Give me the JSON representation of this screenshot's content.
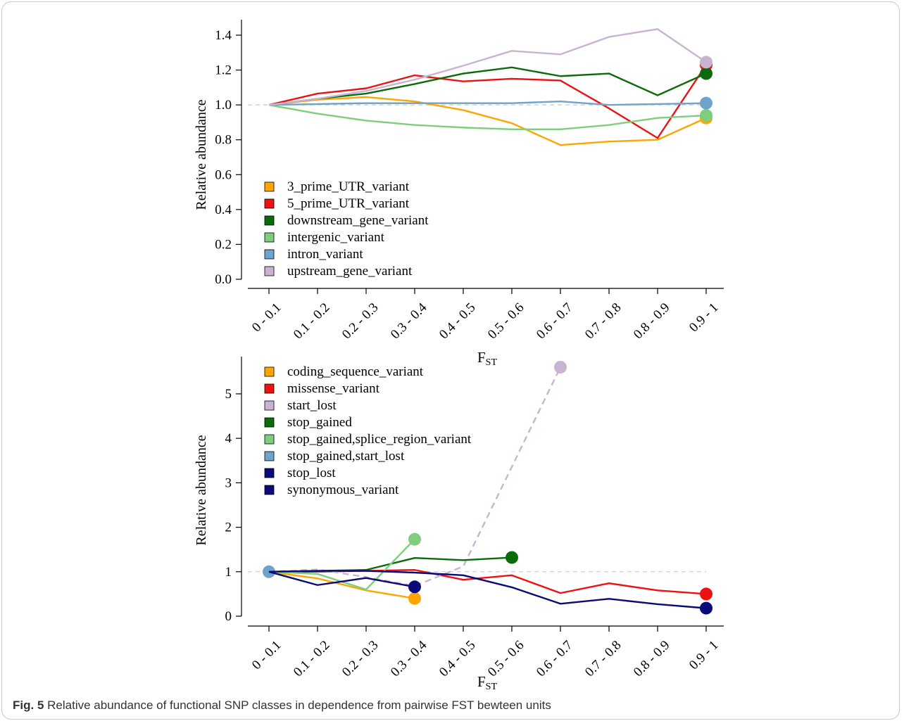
{
  "caption": {
    "label": "Fig. 5",
    "text": "Relative abundance of functional SNP classes in dependence from pairwise FST bewteen units"
  },
  "chart_data": [
    {
      "type": "line",
      "title": "",
      "xlabel": "F",
      "xlabel_sub": "ST",
      "ylabel": "Relative abundance",
      "ylim": [
        0,
        1.4
      ],
      "yticks": [
        "0.0",
        "0.2",
        "0.4",
        "0.6",
        "0.8",
        "1.0",
        "1.2",
        "1.4"
      ],
      "reference_line": 1.0,
      "legend_position": "bottom-left",
      "categories": [
        "0 - 0.1",
        "0.1 - 0.2",
        "0.2 - 0.3",
        "0.3 - 0.4",
        "0.4 - 0.5",
        "0.5 - 0.6",
        "0.6 - 0.7",
        "0.7 - 0.8",
        "0.8 - 0.9",
        "0.9 - 1"
      ],
      "series": [
        {
          "name": "3_prime_UTR_variant",
          "color": "#FFA500",
          "values": [
            1.0,
            1.03,
            1.045,
            1.02,
            0.97,
            0.895,
            0.77,
            0.79,
            0.8,
            0.925
          ]
        },
        {
          "name": "5_prime_UTR_variant",
          "color": "#EE1111",
          "values": [
            1.0,
            1.065,
            1.095,
            1.17,
            1.135,
            1.15,
            1.14,
            0.98,
            0.81,
            1.23
          ]
        },
        {
          "name": "downstream_gene_variant",
          "color": "#0B6B0B",
          "values": [
            1.0,
            1.035,
            1.065,
            1.12,
            1.18,
            1.215,
            1.165,
            1.18,
            1.055,
            1.18
          ]
        },
        {
          "name": "intergenic_variant",
          "color": "#7ECE7E",
          "values": [
            1.0,
            0.95,
            0.91,
            0.885,
            0.87,
            0.86,
            0.86,
            0.885,
            0.925,
            0.94
          ]
        },
        {
          "name": "intron_variant",
          "color": "#6FA3CB",
          "values": [
            1.0,
            1.005,
            1.01,
            1.01,
            1.01,
            1.01,
            1.02,
            1.0,
            1.005,
            1.01
          ]
        },
        {
          "name": "upstream_gene_variant",
          "color": "#C8B4D0",
          "values": [
            1.0,
            1.035,
            1.08,
            1.145,
            1.225,
            1.31,
            1.29,
            1.39,
            1.435,
            1.245
          ]
        }
      ]
    },
    {
      "type": "line",
      "title": "",
      "xlabel": "F",
      "xlabel_sub": "ST",
      "ylabel": "Relative abundance",
      "ylim": [
        0,
        5.6
      ],
      "yticks": [
        "0",
        "1",
        "2",
        "3",
        "4",
        "5"
      ],
      "reference_line": 1.0,
      "legend_position": "top-left",
      "categories": [
        "0 - 0.1",
        "0.1 - 0.2",
        "0.2 - 0.3",
        "0.3 - 0.4",
        "0.4 - 0.5",
        "0.5 - 0.6",
        "0.6 - 0.7",
        "0.7 - 0.8",
        "0.8 - 0.9",
        "0.9 - 1"
      ],
      "series": [
        {
          "name": "coding_sequence_variant",
          "color": "#FFA500",
          "values": [
            1.0,
            0.85,
            0.58,
            0.4,
            null,
            null,
            null,
            null,
            null,
            null
          ]
        },
        {
          "name": "missense_variant",
          "color": "#EE1111",
          "values": [
            1.0,
            1.0,
            1.02,
            1.04,
            0.82,
            0.92,
            0.52,
            0.74,
            0.58,
            0.5
          ]
        },
        {
          "name": "start_lost",
          "color": "#C8B4D0",
          "dashed": true,
          "values": [
            1.0,
            1.05,
            0.88,
            0.68,
            1.12,
            null,
            5.6,
            null,
            null,
            null
          ]
        },
        {
          "name": "stop_gained",
          "color": "#0B6B0B",
          "values": [
            1.0,
            1.02,
            1.04,
            1.31,
            1.26,
            1.32,
            null,
            null,
            null,
            null
          ]
        },
        {
          "name": "stop_gained,splice_region_variant",
          "color": "#7ECE7E",
          "values": [
            1.0,
            0.95,
            0.6,
            1.73,
            null,
            null,
            null,
            null,
            null,
            null
          ]
        },
        {
          "name": "stop_gained,start_lost",
          "color": "#6FA3CB",
          "values": [
            1.0,
            null,
            null,
            null,
            null,
            null,
            null,
            null,
            null,
            null
          ]
        },
        {
          "name": "stop_lost",
          "color": "#0A0A78",
          "values": [
            1.0,
            0.7,
            0.86,
            0.66,
            null,
            null,
            null,
            null,
            null,
            null
          ]
        },
        {
          "name": "synonymous_variant",
          "color": "#0A0A78",
          "values": [
            1.0,
            1.02,
            1.02,
            0.98,
            0.92,
            0.65,
            0.28,
            0.39,
            0.27,
            0.18
          ]
        }
      ]
    }
  ]
}
